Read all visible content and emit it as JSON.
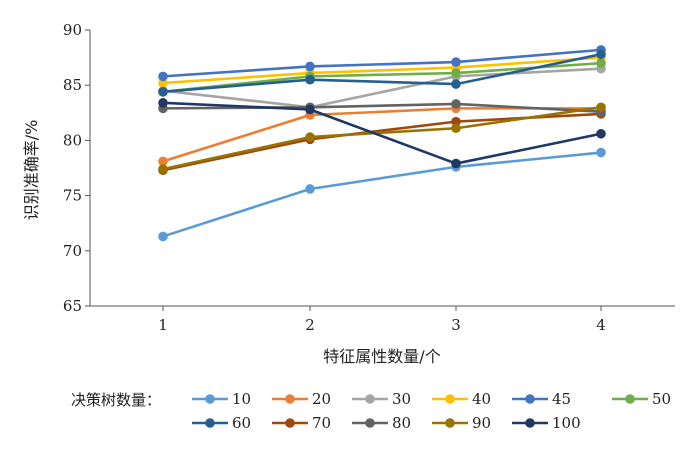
{
  "chart_data": {
    "type": "line",
    "title": "",
    "xlabel": "特征属性数量/个",
    "ylabel": "识别准确率/%",
    "x": [
      1,
      2,
      3,
      4
    ],
    "x_tick_labels": [
      "1",
      "2",
      "3",
      "4"
    ],
    "ylim": [
      65,
      90
    ],
    "y_ticks": [
      65,
      70,
      75,
      80,
      85,
      90
    ],
    "y_tick_labels": [
      "65",
      "70",
      "75",
      "80",
      "85",
      "90"
    ],
    "grid": false,
    "legend_title": "决策树数量：",
    "legend_position": "bottom",
    "series": [
      {
        "name": "10",
        "color": "#5b9bd5",
        "values": [
          71.3,
          75.6,
          77.6,
          78.9
        ]
      },
      {
        "name": "20",
        "color": "#ed7d31",
        "values": [
          78.1,
          82.3,
          82.9,
          82.9
        ]
      },
      {
        "name": "30",
        "color": "#a5a5a5",
        "values": [
          84.5,
          83.0,
          85.8,
          86.5
        ]
      },
      {
        "name": "40",
        "color": "#ffc000",
        "values": [
          85.2,
          86.1,
          86.6,
          87.5
        ]
      },
      {
        "name": "45",
        "color": "#4472c4",
        "values": [
          85.8,
          86.7,
          87.1,
          88.2
        ]
      },
      {
        "name": "50",
        "color": "#70ad47",
        "values": [
          84.4,
          85.8,
          86.1,
          87.0
        ]
      },
      {
        "name": "60",
        "color": "#255e91",
        "values": [
          84.4,
          85.5,
          85.1,
          87.8
        ]
      },
      {
        "name": "70",
        "color": "#9e480e",
        "values": [
          77.3,
          80.1,
          81.7,
          82.4
        ]
      },
      {
        "name": "80",
        "color": "#636363",
        "values": [
          82.9,
          83.0,
          83.3,
          82.6
        ]
      },
      {
        "name": "90",
        "color": "#997300",
        "values": [
          77.4,
          80.3,
          81.1,
          83.0
        ]
      },
      {
        "name": "100",
        "color": "#1f3864",
        "values": [
          83.4,
          82.8,
          77.9,
          80.6
        ]
      }
    ]
  }
}
